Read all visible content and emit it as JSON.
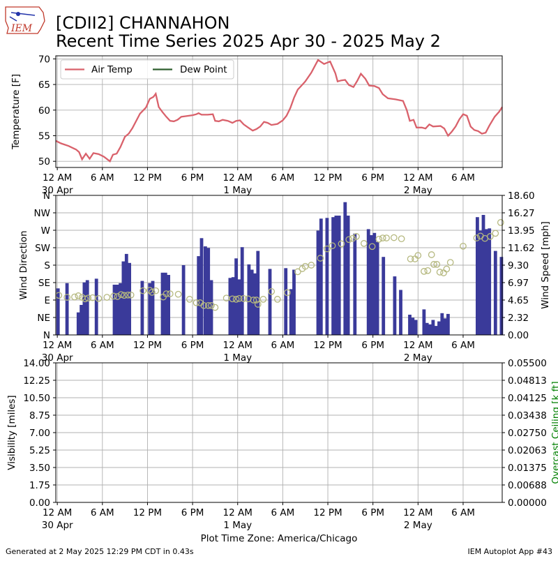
{
  "header": {
    "logo_text": "IEM",
    "title_line1": "[CDII2] CHANNAHON",
    "title_line2": "Recent Time Series 2025 Apr 30 - 2025 May 2"
  },
  "footer": {
    "generated": "Generated at 2 May 2025 12:29 PM CDT in 0.43s",
    "app": "IEM Autoplot App #43",
    "timezone_label": "Plot Time Zone: America/Chicago"
  },
  "colors": {
    "air_temp": "#d9616b",
    "dew_point": "#2d5e2d",
    "wind_speed_bar": "#3a3a9a",
    "wind_dir_marker": "#b5b87f",
    "ceiling_axis": "#008000",
    "grid": "#b0b0b0"
  },
  "x_axis": {
    "tick_labels": [
      "12 AM",
      "6 AM",
      "12 PM",
      "6 PM",
      "12 AM",
      "6 AM",
      "12 PM",
      "6 PM",
      "12 AM",
      "6 AM"
    ],
    "tick_hours": [
      0,
      6,
      12,
      18,
      24,
      30,
      36,
      42,
      48,
      54
    ],
    "date_labels": [
      {
        "hour": 0,
        "text": "30 Apr"
      },
      {
        "hour": 24,
        "text": "1 May"
      },
      {
        "hour": 48,
        "text": "2 May"
      }
    ],
    "range_hours": [
      -0.2,
      59.2
    ]
  },
  "chart_data": [
    {
      "type": "line",
      "x_units": "hours since 30 Apr 12 AM (local)",
      "ylabel": "Temperature [F]",
      "ylim": [
        48.8,
        70.6
      ],
      "yticks": [
        50,
        55,
        60,
        65,
        70
      ],
      "grid": true,
      "legend": {
        "placement": "top-left",
        "entries": [
          "Air Temp",
          "Dew Point"
        ]
      },
      "series": [
        {
          "name": "Air Temp",
          "color": "#d9616b",
          "points": [
            [
              -0.2,
              54.0
            ],
            [
              0.5,
              53.5
            ],
            [
              1.5,
              53.0
            ],
            [
              2.5,
              52.3
            ],
            [
              2.9,
              51.8
            ],
            [
              3.3,
              50.4
            ],
            [
              3.8,
              51.5
            ],
            [
              4.3,
              50.5
            ],
            [
              4.8,
              51.6
            ],
            [
              5.5,
              51.4
            ],
            [
              6.2,
              50.9
            ],
            [
              7.0,
              50.0
            ],
            [
              7.4,
              51.3
            ],
            [
              7.9,
              51.5
            ],
            [
              8.4,
              52.8
            ],
            [
              9.0,
              54.8
            ],
            [
              9.5,
              55.4
            ],
            [
              10.0,
              56.5
            ],
            [
              11.0,
              59.3
            ],
            [
              11.8,
              60.5
            ],
            [
              12.3,
              62.2
            ],
            [
              12.8,
              62.6
            ],
            [
              13.1,
              63.2
            ],
            [
              13.5,
              60.6
            ],
            [
              14.0,
              59.6
            ],
            [
              14.5,
              58.7
            ],
            [
              15.0,
              57.9
            ],
            [
              15.5,
              57.8
            ],
            [
              16.0,
              58.1
            ],
            [
              16.5,
              58.7
            ],
            [
              17.0,
              58.8
            ],
            [
              18.0,
              59.0
            ],
            [
              18.5,
              59.2
            ],
            [
              18.8,
              59.4
            ],
            [
              19.2,
              59.1
            ],
            [
              20.0,
              59.1
            ],
            [
              20.7,
              59.2
            ],
            [
              21.0,
              57.9
            ],
            [
              21.5,
              57.8
            ],
            [
              22.0,
              58.1
            ],
            [
              22.7,
              57.9
            ],
            [
              23.3,
              57.5
            ],
            [
              23.8,
              57.9
            ],
            [
              24.3,
              58.0
            ],
            [
              24.8,
              57.2
            ],
            [
              25.4,
              56.6
            ],
            [
              26.0,
              56.0
            ],
            [
              26.5,
              56.3
            ],
            [
              27.0,
              56.8
            ],
            [
              27.5,
              57.7
            ],
            [
              28.0,
              57.5
            ],
            [
              28.5,
              57.1
            ],
            [
              29.3,
              57.3
            ],
            [
              30.0,
              58.0
            ],
            [
              30.5,
              58.9
            ],
            [
              31.0,
              60.4
            ],
            [
              31.5,
              62.4
            ],
            [
              32.0,
              64.0
            ],
            [
              32.5,
              64.8
            ],
            [
              33.0,
              65.6
            ],
            [
              33.8,
              67.3
            ],
            [
              34.2,
              68.4
            ],
            [
              34.7,
              69.8
            ],
            [
              35.5,
              69.0
            ],
            [
              36.3,
              69.5
            ],
            [
              37.0,
              67.2
            ],
            [
              37.3,
              65.6
            ],
            [
              37.8,
              65.8
            ],
            [
              38.3,
              65.9
            ],
            [
              38.8,
              64.9
            ],
            [
              39.4,
              64.5
            ],
            [
              39.9,
              65.7
            ],
            [
              40.4,
              67.1
            ],
            [
              41.0,
              66.1
            ],
            [
              41.5,
              64.8
            ],
            [
              42.2,
              64.7
            ],
            [
              42.8,
              64.3
            ],
            [
              43.3,
              63.1
            ],
            [
              44.0,
              62.3
            ],
            [
              45.0,
              62.1
            ],
            [
              46.0,
              61.8
            ],
            [
              46.5,
              60.0
            ],
            [
              46.9,
              57.9
            ],
            [
              47.4,
              58.1
            ],
            [
              47.8,
              56.6
            ],
            [
              48.5,
              56.6
            ],
            [
              49.0,
              56.4
            ],
            [
              49.5,
              57.2
            ],
            [
              50.0,
              56.8
            ],
            [
              51.0,
              56.9
            ],
            [
              51.5,
              56.4
            ],
            [
              52.0,
              55.0
            ],
            [
              52.5,
              55.8
            ],
            [
              53.0,
              56.8
            ],
            [
              53.5,
              58.2
            ],
            [
              54.0,
              59.2
            ],
            [
              54.5,
              58.9
            ],
            [
              55.0,
              56.8
            ],
            [
              55.5,
              56.1
            ],
            [
              56.0,
              55.9
            ],
            [
              56.5,
              55.4
            ],
            [
              57.0,
              55.6
            ],
            [
              57.5,
              57.0
            ],
            [
              58.2,
              58.7
            ],
            [
              58.8,
              59.7
            ],
            [
              59.2,
              60.6
            ]
          ]
        },
        {
          "name": "Dew Point",
          "color": "#2d5e2d",
          "points": []
        }
      ]
    },
    {
      "type": "bar",
      "x_units": "hours since 30 Apr 12 AM (local)",
      "ylabel": "Wind Direction",
      "y2label": "Wind Speed [mph]",
      "direction_ticks": [
        "N",
        "NE",
        "E",
        "SE",
        "S",
        "SW",
        "W",
        "NW",
        "N"
      ],
      "direction_range_deg": [
        0,
        360
      ],
      "speed_ticks": [
        "0.00",
        "2.32",
        "4.65",
        "6.97",
        "9.30",
        "11.62",
        "13.95",
        "16.27",
        "18.60"
      ],
      "speed_range_mph": [
        0,
        18.6
      ],
      "grid": true,
      "bar_width_hours": 0.45,
      "wind_speed_bars": [
        [
          0.1,
          6.2
        ],
        [
          1.3,
          6.9
        ],
        [
          2.8,
          3.0
        ],
        [
          3.2,
          4.0
        ],
        [
          3.6,
          7.0
        ],
        [
          4.0,
          7.3
        ],
        [
          5.2,
          7.5
        ],
        [
          7.6,
          6.7
        ],
        [
          8.0,
          6.7
        ],
        [
          8.4,
          6.9
        ],
        [
          8.8,
          9.8
        ],
        [
          9.2,
          10.8
        ],
        [
          9.6,
          9.6
        ],
        [
          11.3,
          7.2
        ],
        [
          12.3,
          6.9
        ],
        [
          12.7,
          7.2
        ],
        [
          14.0,
          8.3
        ],
        [
          14.4,
          8.3
        ],
        [
          14.8,
          8.0
        ],
        [
          16.8,
          9.3
        ],
        [
          18.8,
          10.5
        ],
        [
          19.2,
          12.9
        ],
        [
          19.7,
          11.8
        ],
        [
          20.1,
          11.6
        ],
        [
          20.5,
          7.3
        ],
        [
          23.0,
          7.6
        ],
        [
          23.4,
          7.7
        ],
        [
          23.8,
          10.2
        ],
        [
          24.2,
          7.4
        ],
        [
          24.6,
          11.7
        ],
        [
          25.5,
          9.4
        ],
        [
          25.9,
          8.7
        ],
        [
          26.3,
          8.2
        ],
        [
          26.7,
          11.2
        ],
        [
          28.3,
          8.8
        ],
        [
          30.4,
          8.9
        ],
        [
          31.1,
          6.1
        ],
        [
          31.5,
          8.7
        ],
        [
          34.7,
          13.9
        ],
        [
          35.1,
          15.5
        ],
        [
          35.9,
          15.6
        ],
        [
          36.7,
          15.7
        ],
        [
          37.1,
          15.9
        ],
        [
          37.5,
          15.9
        ],
        [
          38.3,
          17.7
        ],
        [
          38.7,
          15.9
        ],
        [
          39.6,
          13.5
        ],
        [
          41.4,
          14.1
        ],
        [
          41.8,
          13.3
        ],
        [
          42.2,
          13.6
        ],
        [
          42.6,
          12.4
        ],
        [
          43.4,
          10.4
        ],
        [
          44.9,
          7.8
        ],
        [
          45.7,
          6.0
        ],
        [
          46.9,
          2.7
        ],
        [
          47.3,
          2.3
        ],
        [
          47.7,
          2.0
        ],
        [
          48.8,
          3.4
        ],
        [
          49.2,
          1.6
        ],
        [
          49.6,
          1.4
        ],
        [
          50.0,
          2.0
        ],
        [
          50.4,
          1.2
        ],
        [
          50.8,
          1.8
        ],
        [
          51.2,
          2.9
        ],
        [
          51.6,
          2.2
        ],
        [
          52.0,
          2.8
        ],
        [
          55.9,
          15.7
        ],
        [
          56.3,
          13.9
        ],
        [
          56.7,
          16.0
        ],
        [
          57.1,
          14.1
        ],
        [
          57.5,
          14.2
        ],
        [
          58.3,
          11.2
        ],
        [
          59.1,
          10.4
        ]
      ],
      "wind_direction_points": [
        [
          0.2,
          102
        ],
        [
          1.3,
          97
        ],
        [
          2.3,
          98
        ],
        [
          2.8,
          101
        ],
        [
          3.3,
          97
        ],
        [
          3.7,
          93
        ],
        [
          4.1,
          95
        ],
        [
          4.7,
          96
        ],
        [
          5.5,
          94
        ],
        [
          6.6,
          97
        ],
        [
          7.5,
          100
        ],
        [
          8.0,
          99
        ],
        [
          8.5,
          104
        ],
        [
          8.9,
          102
        ],
        [
          9.4,
          103
        ],
        [
          9.8,
          103
        ],
        [
          11.4,
          114
        ],
        [
          12.3,
          115
        ],
        [
          12.6,
          110
        ],
        [
          13.1,
          114
        ],
        [
          14.1,
          98
        ],
        [
          14.5,
          106
        ],
        [
          15.0,
          106
        ],
        [
          16.1,
          105
        ],
        [
          17.6,
          92
        ],
        [
          18.5,
          83
        ],
        [
          19.0,
          83
        ],
        [
          19.5,
          76
        ],
        [
          20.1,
          76
        ],
        [
          20.5,
          76
        ],
        [
          21.0,
          71
        ],
        [
          22.5,
          95
        ],
        [
          23.3,
          93
        ],
        [
          23.8,
          92
        ],
        [
          24.2,
          94
        ],
        [
          24.8,
          94
        ],
        [
          25.4,
          93
        ],
        [
          26.1,
          90
        ],
        [
          26.5,
          90
        ],
        [
          26.7,
          79
        ],
        [
          27.4,
          92
        ],
        [
          28.5,
          112
        ],
        [
          29.3,
          92
        ],
        [
          30.6,
          109
        ],
        [
          32.0,
          163
        ],
        [
          32.6,
          171
        ],
        [
          33.0,
          177
        ],
        [
          33.8,
          180
        ],
        [
          35.0,
          198
        ],
        [
          35.9,
          222
        ],
        [
          36.6,
          230
        ],
        [
          37.8,
          235
        ],
        [
          38.8,
          246
        ],
        [
          39.3,
          249
        ],
        [
          39.8,
          254
        ],
        [
          40.8,
          236
        ],
        [
          41.9,
          228
        ],
        [
          42.8,
          247
        ],
        [
          43.3,
          250
        ],
        [
          43.8,
          250
        ],
        [
          44.8,
          251
        ],
        [
          45.8,
          248
        ],
        [
          47.0,
          196
        ],
        [
          47.6,
          196
        ],
        [
          48.0,
          205
        ],
        [
          48.8,
          164
        ],
        [
          49.3,
          166
        ],
        [
          49.8,
          207
        ],
        [
          50.1,
          182
        ],
        [
          50.5,
          182
        ],
        [
          50.9,
          162
        ],
        [
          51.4,
          160
        ],
        [
          51.8,
          170
        ],
        [
          52.3,
          187
        ],
        [
          54.0,
          229
        ],
        [
          55.8,
          250
        ],
        [
          56.3,
          255
        ],
        [
          56.9,
          249
        ],
        [
          57.6,
          254
        ],
        [
          58.3,
          262
        ],
        [
          59.0,
          290
        ]
      ]
    },
    {
      "type": "line",
      "x_units": "hours since 30 Apr 12 AM (local)",
      "ylabel": "Visibility [miles]",
      "y2label": "Overcast Ceiling [k ft]",
      "ylim": [
        0,
        14
      ],
      "yticks": [
        "0.00",
        "1.75",
        "3.50",
        "5.25",
        "7.00",
        "8.75",
        "10.50",
        "12.25",
        "14.00"
      ],
      "y2lim": [
        0,
        0.055
      ],
      "y2ticks": [
        "0.00000",
        "0.00688",
        "0.01375",
        "0.02063",
        "0.02750",
        "0.03438",
        "0.04125",
        "0.04813",
        "0.05500"
      ],
      "grid": true,
      "series": []
    }
  ]
}
